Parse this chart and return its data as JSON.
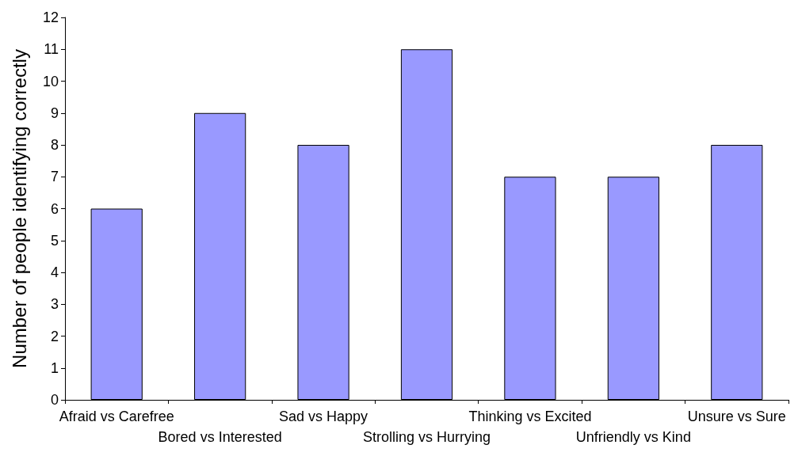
{
  "chart_data": {
    "type": "bar",
    "ylabel": "Number of people identifying correctly",
    "categories": [
      "Afraid vs Carefree",
      "Bored vs Interested",
      "Sad vs Happy",
      "Strolling vs Hurrying",
      "Thinking vs Excited",
      "Unfriendly vs Kind",
      "Unsure vs Sure"
    ],
    "values": [
      6,
      9,
      8,
      11,
      7,
      7,
      8
    ],
    "color": "#9999ff",
    "ylim": [
      0,
      12
    ],
    "yticks": [
      0,
      1,
      2,
      3,
      4,
      5,
      6,
      7,
      8,
      9,
      10,
      11,
      12
    ],
    "grid": false
  }
}
